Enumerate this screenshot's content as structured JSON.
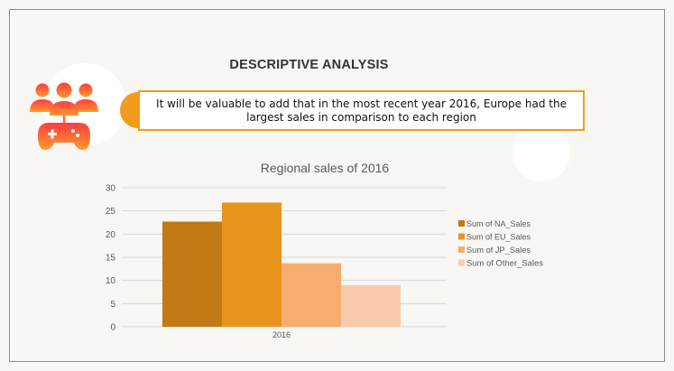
{
  "slide": {
    "title": "DESCRIPTIVE ANALYSIS",
    "callout_text": "It will be valuable to add that in the most recent year 2016, Europe had the largest sales in comparison to each region"
  },
  "icons": {
    "logo": "gamers-controller-icon"
  },
  "colors": {
    "accent": "#f29b1d",
    "na": "#c17a16",
    "eu": "#e6941b",
    "jp": "#f7ad70",
    "other": "#f9cbac"
  },
  "chart_data": {
    "type": "bar",
    "title": "Regional sales of 2016",
    "categories": [
      "2016"
    ],
    "series": [
      {
        "name": "Sum of NA_Sales",
        "values": [
          22.7
        ]
      },
      {
        "name": "Sum of EU_Sales",
        "values": [
          26.8
        ]
      },
      {
        "name": "Sum of JP_Sales",
        "values": [
          13.7
        ]
      },
      {
        "name": "Sum of Other_Sales",
        "values": [
          9.0
        ]
      }
    ],
    "yticks": [
      0,
      5,
      10,
      15,
      20,
      25,
      30
    ],
    "ylim": [
      0,
      30
    ],
    "grid": true,
    "legend_position": "right"
  }
}
